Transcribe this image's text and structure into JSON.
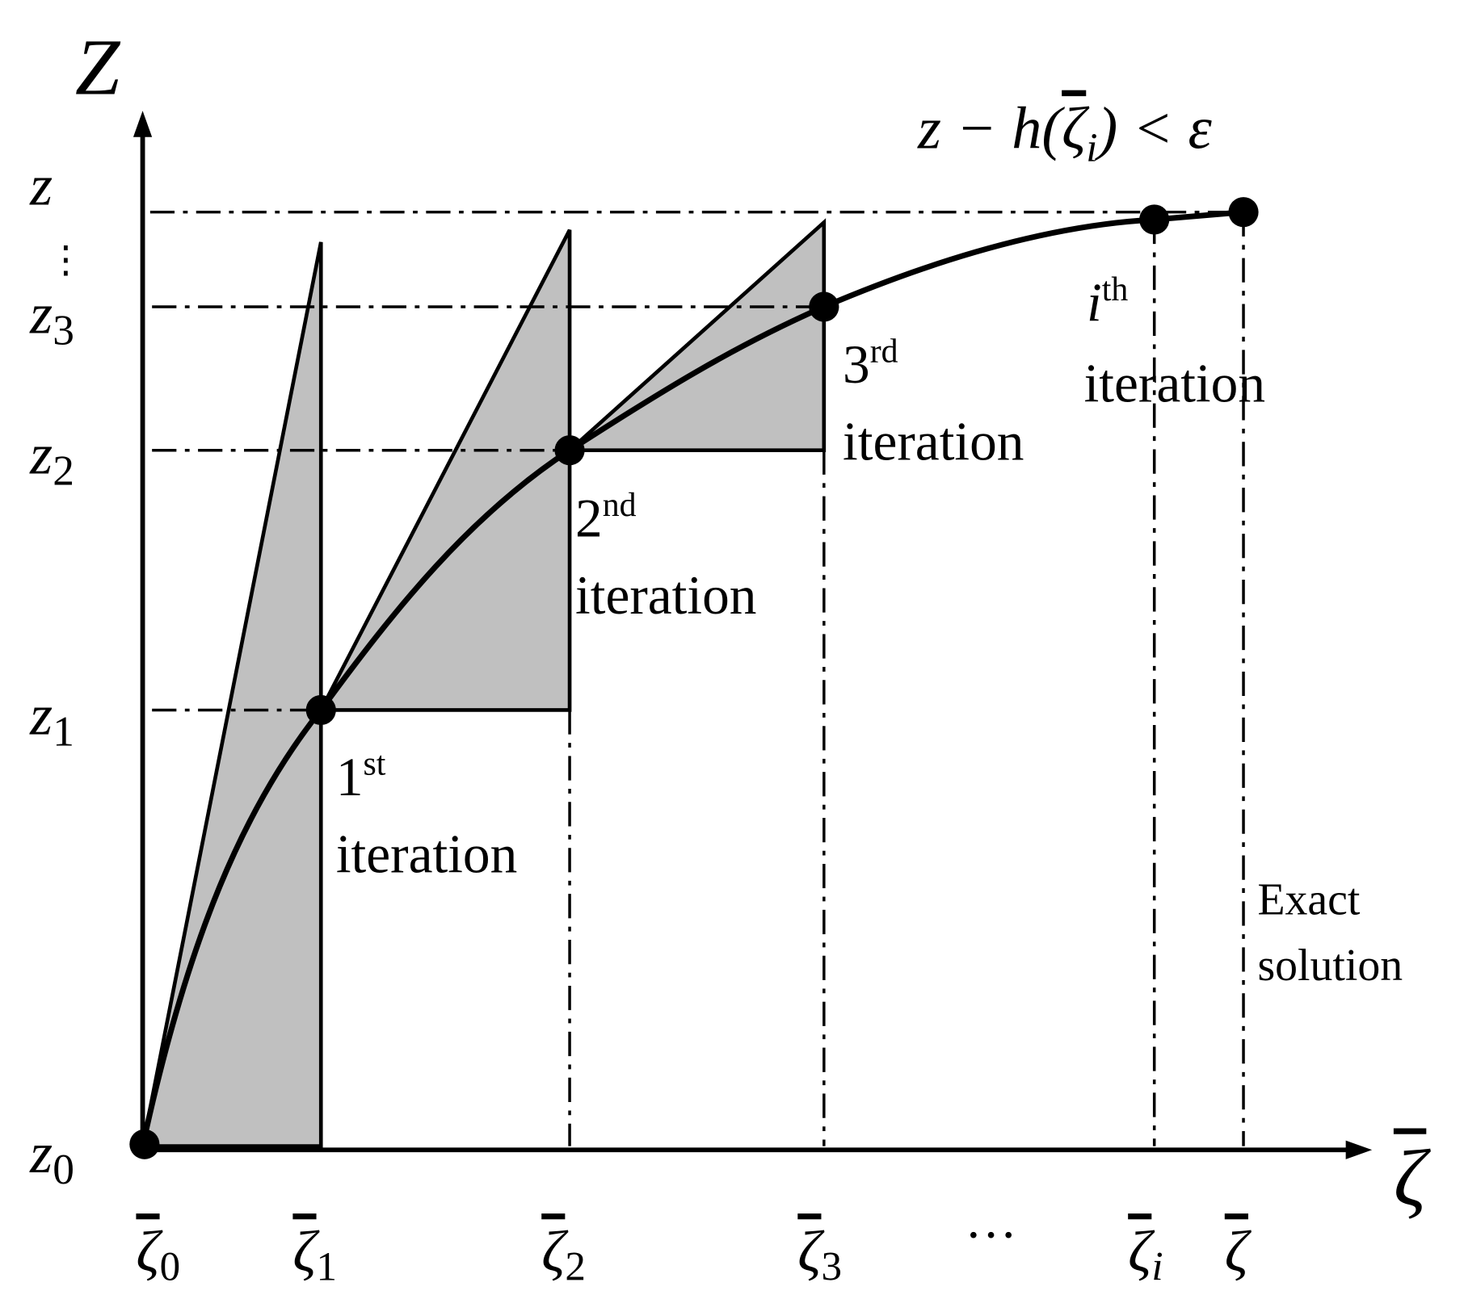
{
  "axes": {
    "y_title": "Z",
    "x_title": "ζ"
  },
  "y_labels": [
    {
      "base": "z",
      "sub": "0"
    },
    {
      "base": "z",
      "sub": "1"
    },
    {
      "base": "z",
      "sub": "2"
    },
    {
      "base": "z",
      "sub": "3"
    },
    {
      "base": "⋮"
    },
    {
      "base": "z"
    }
  ],
  "x_labels": [
    {
      "base": "ζ",
      "sub": "0"
    },
    {
      "base": "ζ",
      "sub": "1"
    },
    {
      "base": "ζ",
      "sub": "2"
    },
    {
      "base": "ζ",
      "sub": "3"
    },
    {
      "base": "···"
    },
    {
      "base": "ζ",
      "sub": "i"
    },
    {
      "base": "ζ"
    }
  ],
  "iterations": [
    {
      "number": "1",
      "suffix": "st",
      "text": "iteration"
    },
    {
      "number": "2",
      "suffix": "nd",
      "text": "iteration"
    },
    {
      "number": "3",
      "suffix": "rd",
      "text": "iteration"
    },
    {
      "number": "i",
      "suffix": "th",
      "text": "iteration"
    }
  ],
  "exact_solution": [
    "Exact",
    "solution"
  ],
  "equation": {
    "before": "z − h(",
    "var": "ζ",
    "sub": "i",
    "after": ") < ε"
  }
}
